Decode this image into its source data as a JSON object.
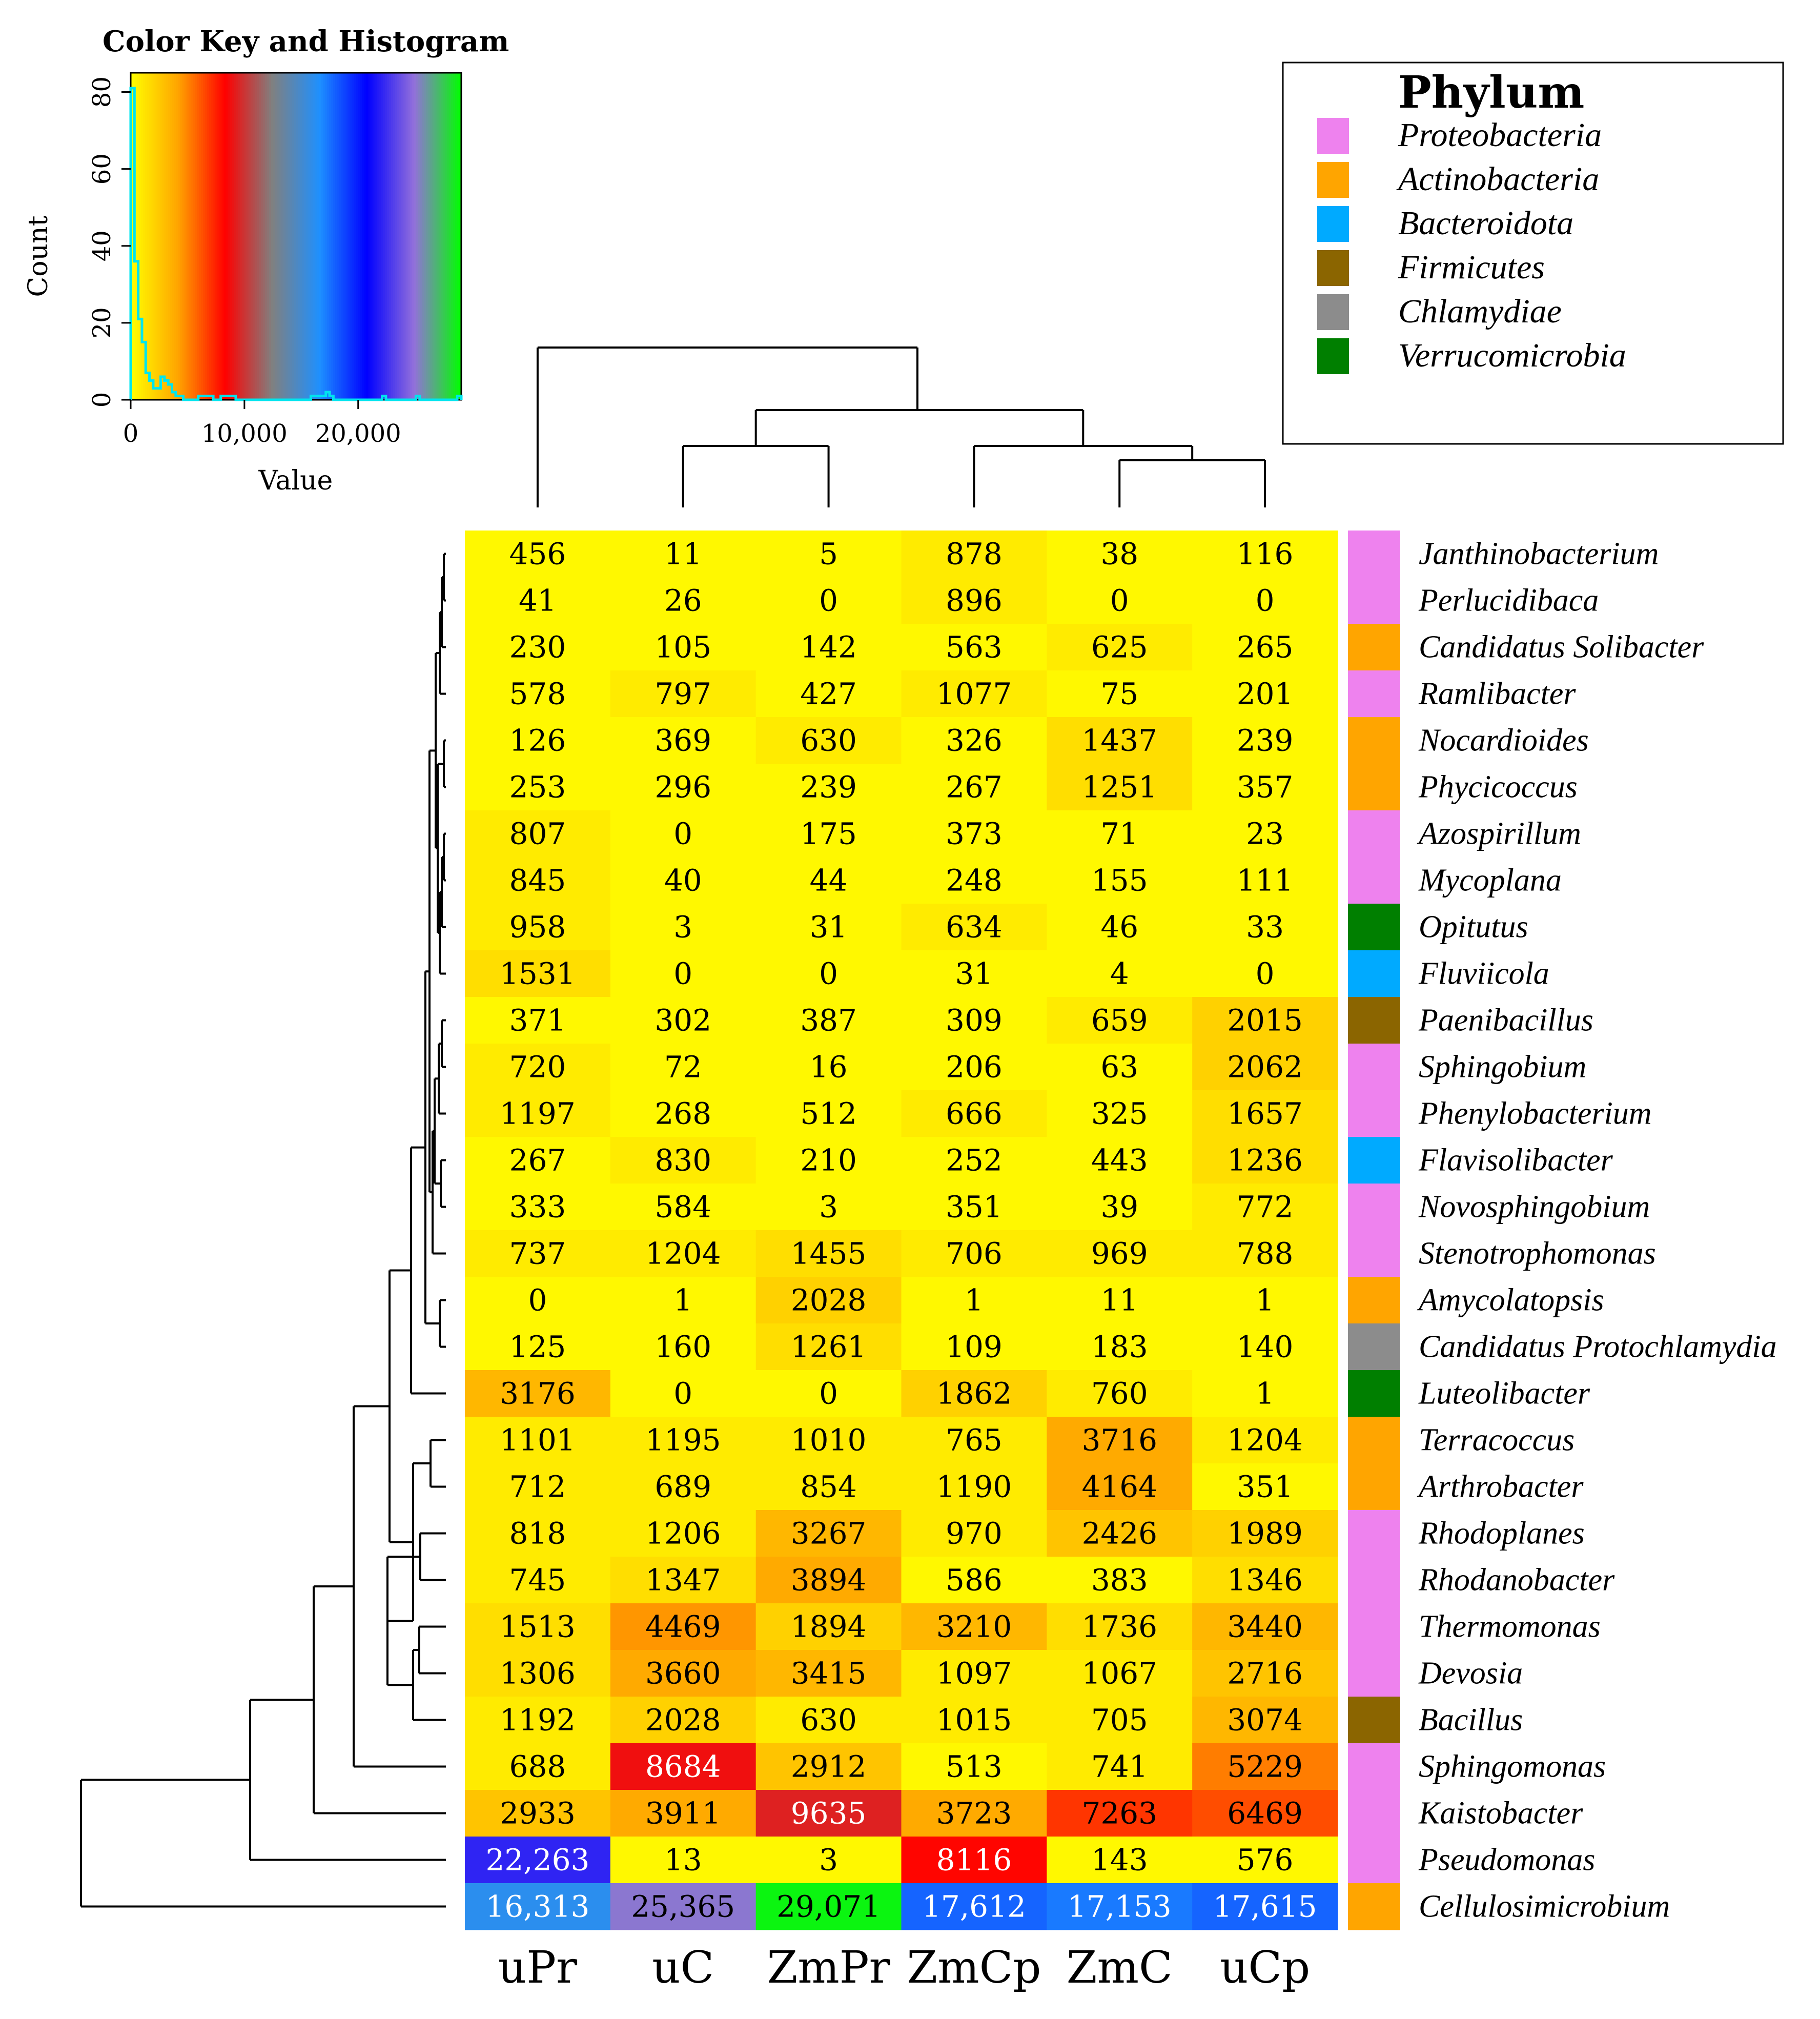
{
  "chart_data": {
    "type": "heatmap",
    "columns": [
      "uPr",
      "uC",
      "ZmPr",
      "ZmCp",
      "ZmC",
      "uCp"
    ],
    "rows": [
      {
        "genus": "Janthinobacterium",
        "phylum": "Proteobacteria",
        "values": [
          456,
          11,
          5,
          878,
          38,
          116
        ],
        "labels": [
          "456",
          "11",
          "5",
          "878",
          "38",
          "116"
        ]
      },
      {
        "genus": "Perlucidibaca",
        "phylum": "Proteobacteria",
        "values": [
          41,
          26,
          0,
          896,
          0,
          0
        ],
        "labels": [
          "41",
          "26",
          "0",
          "896",
          "0",
          "0"
        ]
      },
      {
        "genus": "Candidatus Solibacter",
        "phylum": "Actinobacteria",
        "values": [
          230,
          105,
          142,
          563,
          625,
          265
        ],
        "labels": [
          "230",
          "105",
          "142",
          "563",
          "625",
          "265"
        ]
      },
      {
        "genus": "Ramlibacter",
        "phylum": "Proteobacteria",
        "values": [
          578,
          797,
          427,
          1077,
          75,
          201
        ],
        "labels": [
          "578",
          "797",
          "427",
          "1077",
          "75",
          "201"
        ]
      },
      {
        "genus": "Nocardioides",
        "phylum": "Actinobacteria",
        "values": [
          126,
          369,
          630,
          326,
          1437,
          239
        ],
        "labels": [
          "126",
          "369",
          "630",
          "326",
          "1437",
          "239"
        ]
      },
      {
        "genus": "Phycicoccus",
        "phylum": "Actinobacteria",
        "values": [
          253,
          296,
          239,
          267,
          1251,
          357
        ],
        "labels": [
          "253",
          "296",
          "239",
          "267",
          "1251",
          "357"
        ]
      },
      {
        "genus": "Azospirillum",
        "phylum": "Proteobacteria",
        "values": [
          807,
          0,
          175,
          373,
          71,
          23
        ],
        "labels": [
          "807",
          "0",
          "175",
          "373",
          "71",
          "23"
        ]
      },
      {
        "genus": "Mycoplana",
        "phylum": "Proteobacteria",
        "values": [
          845,
          40,
          44,
          248,
          155,
          111
        ],
        "labels": [
          "845",
          "40",
          "44",
          "248",
          "155",
          "111"
        ]
      },
      {
        "genus": "Opitutus",
        "phylum": "Verrucomicrobia",
        "values": [
          958,
          3,
          31,
          634,
          46,
          33
        ],
        "labels": [
          "958",
          "3",
          "31",
          "634",
          "46",
          "33"
        ]
      },
      {
        "genus": "Fluviicola",
        "phylum": "Bacteroidota",
        "values": [
          1531,
          0,
          0,
          31,
          4,
          0
        ],
        "labels": [
          "1531",
          "0",
          "0",
          "31",
          "4",
          "0"
        ]
      },
      {
        "genus": "Paenibacillus",
        "phylum": "Firmicutes",
        "values": [
          371,
          302,
          387,
          309,
          659,
          2015
        ],
        "labels": [
          "371",
          "302",
          "387",
          "309",
          "659",
          "2015"
        ]
      },
      {
        "genus": "Sphingobium",
        "phylum": "Proteobacteria",
        "values": [
          720,
          72,
          16,
          206,
          63,
          2062
        ],
        "labels": [
          "720",
          "72",
          "16",
          "206",
          "63",
          "2062"
        ]
      },
      {
        "genus": "Phenylobacterium",
        "phylum": "Proteobacteria",
        "values": [
          1197,
          268,
          512,
          666,
          325,
          1657
        ],
        "labels": [
          "1197",
          "268",
          "512",
          "666",
          "325",
          "1657"
        ]
      },
      {
        "genus": "Flavisolibacter",
        "phylum": "Bacteroidota",
        "values": [
          267,
          830,
          210,
          252,
          443,
          1236
        ],
        "labels": [
          "267",
          "830",
          "210",
          "252",
          "443",
          "1236"
        ]
      },
      {
        "genus": "Novosphingobium",
        "phylum": "Proteobacteria",
        "values": [
          333,
          584,
          3,
          351,
          39,
          772
        ],
        "labels": [
          "333",
          "584",
          "3",
          "351",
          "39",
          "772"
        ]
      },
      {
        "genus": "Stenotrophomonas",
        "phylum": "Proteobacteria",
        "values": [
          737,
          1204,
          1455,
          706,
          969,
          788
        ],
        "labels": [
          "737",
          "1204",
          "1455",
          "706",
          "969",
          "788"
        ]
      },
      {
        "genus": "Amycolatopsis",
        "phylum": "Actinobacteria",
        "values": [
          0,
          1,
          2028,
          1,
          11,
          1
        ],
        "labels": [
          "0",
          "1",
          "2028",
          "1",
          "11",
          "1"
        ]
      },
      {
        "genus": "Candidatus Protochlamydia",
        "phylum": "Chlamydiae",
        "values": [
          125,
          160,
          1261,
          109,
          183,
          140
        ],
        "labels": [
          "125",
          "160",
          "1261",
          "109",
          "183",
          "140"
        ]
      },
      {
        "genus": "Luteolibacter",
        "phylum": "Verrucomicrobia",
        "values": [
          3176,
          0,
          0,
          1862,
          760,
          1
        ],
        "labels": [
          "3176",
          "0",
          "0",
          "1862",
          "760",
          "1"
        ]
      },
      {
        "genus": "Terracoccus",
        "phylum": "Actinobacteria",
        "values": [
          1101,
          1195,
          1010,
          765,
          3716,
          1204
        ],
        "labels": [
          "1101",
          "1195",
          "1010",
          "765",
          "3716",
          "1204"
        ]
      },
      {
        "genus": "Arthrobacter",
        "phylum": "Actinobacteria",
        "values": [
          712,
          689,
          854,
          1190,
          4164,
          351
        ],
        "labels": [
          "712",
          "689",
          "854",
          "1190",
          "4164",
          "351"
        ]
      },
      {
        "genus": "Rhodoplanes",
        "phylum": "Proteobacteria",
        "values": [
          818,
          1206,
          3267,
          970,
          2426,
          1989
        ],
        "labels": [
          "818",
          "1206",
          "3267",
          "970",
          "2426",
          "1989"
        ]
      },
      {
        "genus": "Rhodanobacter",
        "phylum": "Proteobacteria",
        "values": [
          745,
          1347,
          3894,
          586,
          383,
          1346
        ],
        "labels": [
          "745",
          "1347",
          "3894",
          "586",
          "383",
          "1346"
        ]
      },
      {
        "genus": "Thermomonas",
        "phylum": "Proteobacteria",
        "values": [
          1513,
          4469,
          1894,
          3210,
          1736,
          3440
        ],
        "labels": [
          "1513",
          "4469",
          "1894",
          "3210",
          "1736",
          "3440"
        ]
      },
      {
        "genus": "Devosia",
        "phylum": "Proteobacteria",
        "values": [
          1306,
          3660,
          3415,
          1097,
          1067,
          2716
        ],
        "labels": [
          "1306",
          "3660",
          "3415",
          "1097",
          "1067",
          "2716"
        ]
      },
      {
        "genus": "Bacillus",
        "phylum": "Firmicutes",
        "values": [
          1192,
          2028,
          630,
          1015,
          705,
          3074
        ],
        "labels": [
          "1192",
          "2028",
          "630",
          "1015",
          "705",
          "3074"
        ]
      },
      {
        "genus": "Sphingomonas",
        "phylum": "Proteobacteria",
        "values": [
          688,
          8684,
          2912,
          513,
          741,
          5229
        ],
        "labels": [
          "688",
          "8684",
          "2912",
          "513",
          "741",
          "5229"
        ]
      },
      {
        "genus": "Kaistobacter",
        "phylum": "Proteobacteria",
        "values": [
          2933,
          3911,
          9635,
          3723,
          7263,
          6469
        ],
        "labels": [
          "2933",
          "3911",
          "9635",
          "3723",
          "7263",
          "6469"
        ]
      },
      {
        "genus": "Pseudomonas",
        "phylum": "Proteobacteria",
        "values": [
          22263,
          13,
          3,
          8116,
          143,
          576
        ],
        "labels": [
          "22,263",
          "13",
          "3",
          "8116",
          "143",
          "576"
        ]
      },
      {
        "genus": "Cellulosimicrobium",
        "phylum": "Actinobacteria",
        "values": [
          16313,
          25365,
          29071,
          17612,
          17153,
          17615
        ],
        "labels": [
          "16,313",
          "25,365",
          "29,071",
          "17,612",
          "17,153",
          "17,615"
        ]
      }
    ],
    "legend": {
      "title": "Phylum",
      "items": [
        {
          "name": "Proteobacteria",
          "color": "#ee82ee"
        },
        {
          "name": "Actinobacteria",
          "color": "#ffa500"
        },
        {
          "name": "Bacteroidota",
          "color": "#00aaff"
        },
        {
          "name": "Firmicutes",
          "color": "#8b6500"
        },
        {
          "name": "Chlamydiae",
          "color": "#8c8c8c"
        },
        {
          "name": "Verrucomicrobia",
          "color": "#007f00"
        }
      ]
    },
    "color_key": {
      "title": "Color Key and Histogram",
      "xlabel": "Value",
      "ylabel": "Count",
      "x_ticks": [
        0,
        10000,
        20000
      ],
      "x_tick_labels": [
        "0",
        "10,000",
        "20,000"
      ],
      "y_ticks": [
        0,
        20,
        40,
        60,
        80
      ],
      "xlim": [
        0,
        29071
      ],
      "ylim": [
        0,
        85
      ],
      "gradient": [
        "#ffff00",
        "#ffa500",
        "#ff0000",
        "#808080",
        "#1e90ff",
        "#0000ff",
        "#9370db",
        "#00ff00"
      ],
      "histogram": [
        {
          "x": 0,
          "count": 81
        },
        {
          "x": 330,
          "count": 36
        },
        {
          "x": 660,
          "count": 21
        },
        {
          "x": 990,
          "count": 15
        },
        {
          "x": 1320,
          "count": 7
        },
        {
          "x": 1650,
          "count": 5
        },
        {
          "x": 1980,
          "count": 3
        },
        {
          "x": 2310,
          "count": 3
        },
        {
          "x": 2640,
          "count": 6
        },
        {
          "x": 2970,
          "count": 5
        },
        {
          "x": 3300,
          "count": 4
        },
        {
          "x": 3630,
          "count": 2
        },
        {
          "x": 3960,
          "count": 1
        },
        {
          "x": 4290,
          "count": 1
        },
        {
          "x": 4620,
          "count": 0
        },
        {
          "x": 5280,
          "count": 0
        },
        {
          "x": 5940,
          "count": 1
        },
        {
          "x": 6600,
          "count": 1
        },
        {
          "x": 7260,
          "count": 0
        },
        {
          "x": 7920,
          "count": 1
        },
        {
          "x": 8580,
          "count": 1
        },
        {
          "x": 9240,
          "count": 0
        },
        {
          "x": 15840,
          "count": 1
        },
        {
          "x": 16170,
          "count": 1
        },
        {
          "x": 16500,
          "count": 1
        },
        {
          "x": 16830,
          "count": 1
        },
        {
          "x": 17160,
          "count": 2
        },
        {
          "x": 17490,
          "count": 1
        },
        {
          "x": 17820,
          "count": 0
        },
        {
          "x": 22110,
          "count": 1
        },
        {
          "x": 22440,
          "count": 0
        },
        {
          "x": 25080,
          "count": 1
        },
        {
          "x": 25410,
          "count": 0
        },
        {
          "x": 28710,
          "count": 1
        },
        {
          "x": 29071,
          "count": 0
        }
      ]
    }
  }
}
